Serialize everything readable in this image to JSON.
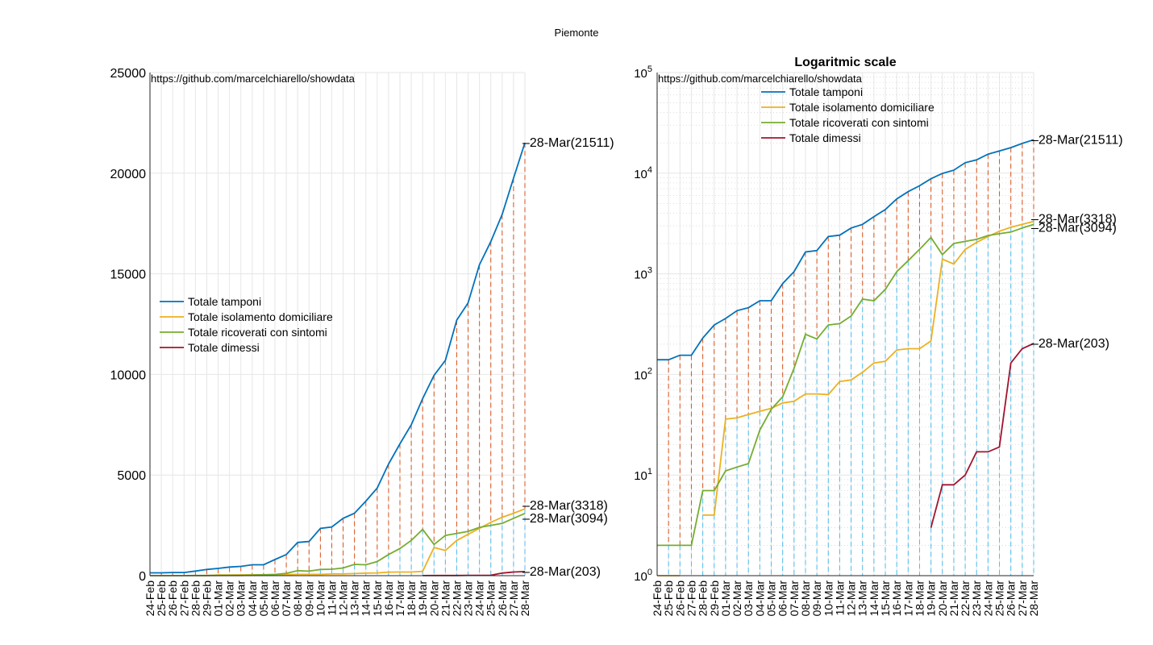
{
  "figure_title": "Piemonte",
  "watermark": "https://github.com/marcelchiarello/showdata",
  "colors": {
    "tamponi": "#0072BD",
    "isolamento": "#EDB120",
    "ricoverati": "#77AC30",
    "dimessi": "#A2142F",
    "stem_red": "#D95319",
    "stem_blue": "#4DBEEE",
    "grid": "#e6e6e6",
    "axis": "#262626"
  },
  "chart_data": [
    {
      "type": "line",
      "title": "",
      "xlabel": "",
      "ylabel": "",
      "ylim": [
        0,
        25000
      ],
      "yticks": [
        "0",
        "5000",
        "10000",
        "15000",
        "20000",
        "25000"
      ],
      "grid": true,
      "legend_position": "middle-left",
      "categories": [
        "24-Feb",
        "25-Feb",
        "26-Feb",
        "27-Feb",
        "28-Feb",
        "29-Feb",
        "01-Mar",
        "02-Mar",
        "03-Mar",
        "04-Mar",
        "05-Mar",
        "06-Mar",
        "07-Mar",
        "08-Mar",
        "09-Mar",
        "10-Mar",
        "11-Mar",
        "12-Mar",
        "13-Mar",
        "14-Mar",
        "15-Mar",
        "16-Mar",
        "17-Mar",
        "18-Mar",
        "19-Mar",
        "20-Mar",
        "21-Mar",
        "22-Mar",
        "23-Mar",
        "24-Mar",
        "25-Mar",
        "26-Mar",
        "27-Mar",
        "28-Mar"
      ],
      "series": [
        {
          "name": "Totale tamponi",
          "values": [
            140,
            140,
            155,
            155,
            230,
            310,
            360,
            430,
            460,
            540,
            540,
            800,
            1050,
            1650,
            1700,
            2350,
            2420,
            2850,
            3100,
            3700,
            4350,
            5550,
            6550,
            7500,
            8800,
            9950,
            10700,
            12700,
            13550,
            15450,
            16600,
            17950,
            19750,
            21511
          ]
        },
        {
          "name": "Totale isolamento domiciliare",
          "values": [
            null,
            null,
            null,
            null,
            4,
            4,
            36,
            37,
            40,
            43,
            46,
            52,
            54,
            64,
            64,
            63,
            85,
            88,
            105,
            130,
            135,
            175,
            180,
            180,
            215,
            1400,
            1250,
            1750,
            2050,
            2350,
            2650,
            2900,
            3100,
            3318
          ]
        },
        {
          "name": "Totale ricoverati con sintomi",
          "values": [
            2,
            2,
            2,
            2,
            7,
            7,
            11,
            12,
            13,
            28,
            45,
            60,
            115,
            250,
            225,
            310,
            320,
            380,
            560,
            540,
            700,
            1050,
            1350,
            1750,
            2300,
            1550,
            2000,
            2100,
            2200,
            2400,
            2500,
            2600,
            2850,
            3094
          ]
        },
        {
          "name": "Totale dimessi",
          "values": [
            null,
            null,
            null,
            null,
            null,
            null,
            null,
            null,
            null,
            null,
            null,
            null,
            null,
            null,
            null,
            null,
            null,
            null,
            null,
            null,
            null,
            null,
            null,
            null,
            3,
            8,
            8,
            10,
            17,
            17,
            19,
            130,
            180,
            203
          ]
        }
      ],
      "end_labels": [
        "28-Mar(21511)",
        "28-Mar(3318)",
        "28-Mar(3094)",
        "28-Mar(203)"
      ]
    },
    {
      "type": "line",
      "title": "Logaritmic scale",
      "xlabel": "",
      "ylabel": "",
      "yscale": "log",
      "ylim": [
        1,
        100000
      ],
      "ytick_exponents": [
        "0",
        "1",
        "2",
        "3",
        "4",
        "5"
      ],
      "grid": true,
      "legend_position": "top-center",
      "categories": [
        "24-Feb",
        "25-Feb",
        "26-Feb",
        "27-Feb",
        "28-Feb",
        "29-Feb",
        "01-Mar",
        "02-Mar",
        "03-Mar",
        "04-Mar",
        "05-Mar",
        "06-Mar",
        "07-Mar",
        "08-Mar",
        "09-Mar",
        "10-Mar",
        "11-Mar",
        "12-Mar",
        "13-Mar",
        "14-Mar",
        "15-Mar",
        "16-Mar",
        "17-Mar",
        "18-Mar",
        "19-Mar",
        "20-Mar",
        "21-Mar",
        "22-Mar",
        "23-Mar",
        "24-Mar",
        "25-Mar",
        "26-Mar",
        "27-Mar",
        "28-Mar"
      ],
      "series": [
        {
          "name": "Totale tamponi",
          "values": [
            140,
            140,
            155,
            155,
            230,
            310,
            360,
            430,
            460,
            540,
            540,
            800,
            1050,
            1650,
            1700,
            2350,
            2420,
            2850,
            3100,
            3700,
            4350,
            5550,
            6550,
            7500,
            8800,
            9950,
            10700,
            12700,
            13550,
            15450,
            16600,
            17950,
            19750,
            21511
          ]
        },
        {
          "name": "Totale isolamento domiciliare",
          "values": [
            1,
            1,
            1,
            null,
            4,
            4,
            36,
            37,
            40,
            43,
            46,
            52,
            54,
            64,
            64,
            63,
            85,
            88,
            105,
            130,
            135,
            175,
            180,
            180,
            215,
            1400,
            1250,
            1750,
            2050,
            2350,
            2650,
            2900,
            3100,
            3318
          ]
        },
        {
          "name": "Totale ricoverati con sintomi",
          "values": [
            2,
            2,
            2,
            2,
            7,
            7,
            11,
            12,
            13,
            28,
            45,
            60,
            115,
            250,
            225,
            310,
            320,
            380,
            560,
            540,
            700,
            1050,
            1350,
            1750,
            2300,
            1550,
            2000,
            2100,
            2200,
            2400,
            2500,
            2600,
            2850,
            3094
          ]
        },
        {
          "name": "Totale dimessi",
          "values": [
            null,
            null,
            null,
            null,
            null,
            null,
            null,
            null,
            null,
            null,
            null,
            null,
            null,
            null,
            null,
            null,
            null,
            null,
            null,
            null,
            null,
            null,
            null,
            null,
            3,
            8,
            8,
            10,
            17,
            17,
            19,
            130,
            180,
            203
          ]
        }
      ],
      "end_labels": [
        "28-Mar(21511)",
        "28-Mar(3318)",
        "28-Mar(3094)",
        "28-Mar(203)"
      ]
    }
  ]
}
